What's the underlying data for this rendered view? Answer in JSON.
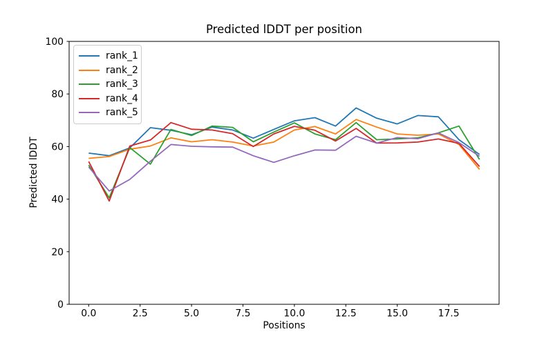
{
  "chart_data": {
    "type": "line",
    "title": "Predicted lDDT per position",
    "xlabel": "Positions",
    "ylabel": "Predicted lDDT",
    "xlim": [
      -0.95,
      19.95
    ],
    "ylim": [
      0,
      100
    ],
    "grid": false,
    "legend_position": "upper left",
    "x": [
      0,
      1,
      2,
      3,
      4,
      5,
      6,
      7,
      8,
      9,
      10,
      11,
      12,
      13,
      14,
      15,
      16,
      17,
      18,
      19
    ],
    "x_ticks": [
      {
        "value": 0.0,
        "label": "0.0"
      },
      {
        "value": 2.5,
        "label": "2.5"
      },
      {
        "value": 5.0,
        "label": "5.0"
      },
      {
        "value": 7.5,
        "label": "7.5"
      },
      {
        "value": 10.0,
        "label": "10.0"
      },
      {
        "value": 12.5,
        "label": "12.5"
      },
      {
        "value": 15.0,
        "label": "15.0"
      },
      {
        "value": 17.5,
        "label": "17.5"
      }
    ],
    "y_ticks": [
      {
        "value": 0,
        "label": "0"
      },
      {
        "value": 20,
        "label": "20"
      },
      {
        "value": 40,
        "label": "40"
      },
      {
        "value": 60,
        "label": "60"
      },
      {
        "value": 80,
        "label": "80"
      },
      {
        "value": 100,
        "label": "100"
      }
    ],
    "series": [
      {
        "name": "rank_1",
        "color": "#1f77b4",
        "values": [
          57.5,
          56.5,
          59.5,
          67.2,
          66.2,
          64.5,
          67.4,
          66.3,
          63.2,
          66.5,
          69.8,
          71.0,
          67.8,
          74.7,
          70.8,
          68.6,
          71.8,
          71.3,
          62.6,
          57.0
        ]
      },
      {
        "name": "rank_2",
        "color": "#ff7f0e",
        "values": [
          55.5,
          56.2,
          59.0,
          60.2,
          63.3,
          61.8,
          62.6,
          61.7,
          60.2,
          61.7,
          66.3,
          67.6,
          64.8,
          70.3,
          67.4,
          64.8,
          64.3,
          64.8,
          60.8,
          51.3
        ]
      },
      {
        "name": "rank_3",
        "color": "#2ca02c",
        "values": [
          53.0,
          40.5,
          59.6,
          53.3,
          66.5,
          64.2,
          67.8,
          67.3,
          61.8,
          65.5,
          69.0,
          64.8,
          62.6,
          69.1,
          62.6,
          62.9,
          63.3,
          65.2,
          67.8,
          55.1
        ]
      },
      {
        "name": "rank_4",
        "color": "#d62728",
        "values": [
          54.3,
          39.3,
          60.2,
          62.5,
          69.1,
          66.6,
          66.3,
          64.9,
          60.0,
          64.8,
          67.7,
          66.2,
          62.1,
          66.9,
          61.3,
          61.4,
          61.7,
          62.9,
          61.2,
          52.4
        ]
      },
      {
        "name": "rank_5",
        "color": "#9467bd",
        "values": [
          52.2,
          43.1,
          47.5,
          54.4,
          60.8,
          60.1,
          59.9,
          59.8,
          56.5,
          54.0,
          56.5,
          58.7,
          58.6,
          63.9,
          61.3,
          63.4,
          63.0,
          65.2,
          61.5,
          56.3
        ]
      }
    ]
  }
}
